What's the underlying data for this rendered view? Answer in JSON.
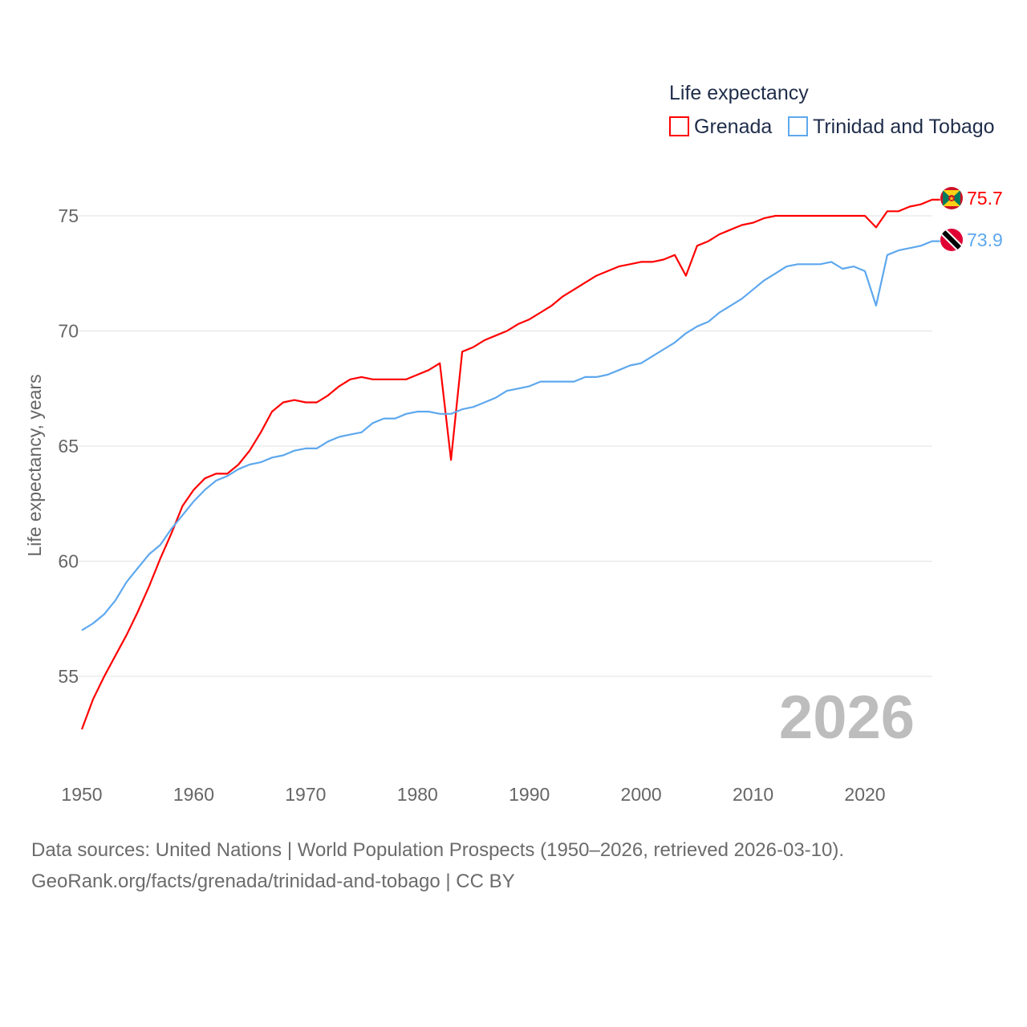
{
  "chart_data": {
    "type": "line",
    "legend_title": "Life expectancy",
    "legend_position": "top-right",
    "ylabel": "Life expectancy, years",
    "xlabel": "",
    "xlim": [
      1950,
      2026
    ],
    "ylim": [
      51.5,
      77
    ],
    "x_ticks": [
      1950,
      1960,
      1970,
      1980,
      1990,
      2000,
      2010,
      2020
    ],
    "y_ticks": [
      55,
      60,
      65,
      70,
      75
    ],
    "year_watermark": "2026",
    "grid": true,
    "series": [
      {
        "name": "Grenada",
        "color": "#ff0000",
        "end_label": "75.7",
        "flag": "grenada-flag",
        "values": [
          52.7,
          54.0,
          55.0,
          55.9,
          56.8,
          57.8,
          58.9,
          60.1,
          61.2,
          62.4,
          63.1,
          63.6,
          63.8,
          63.8,
          64.2,
          64.8,
          65.6,
          66.5,
          66.9,
          67.0,
          66.9,
          66.9,
          67.2,
          67.6,
          67.9,
          68.0,
          67.9,
          67.9,
          67.9,
          67.9,
          68.1,
          68.3,
          68.6,
          64.4,
          69.1,
          69.3,
          69.6,
          69.8,
          70.0,
          70.3,
          70.5,
          70.8,
          71.1,
          71.5,
          71.8,
          72.1,
          72.4,
          72.6,
          72.8,
          72.9,
          73.0,
          73.0,
          73.1,
          73.3,
          72.4,
          73.7,
          73.9,
          74.2,
          74.4,
          74.6,
          74.7,
          74.9,
          75.0,
          75.0,
          75.0,
          75.0,
          75.0,
          75.0,
          75.0,
          75.0,
          75.0,
          74.5,
          75.2,
          75.2,
          75.4,
          75.5,
          75.7
        ]
      },
      {
        "name": "Trinidad and Tobago",
        "color": "#5ea8ee",
        "end_label": "73.9",
        "flag": "trinidad-and-tobago-flag",
        "values": [
          57.0,
          57.3,
          57.7,
          58.3,
          59.1,
          59.7,
          60.3,
          60.7,
          61.4,
          62.0,
          62.6,
          63.1,
          63.5,
          63.7,
          64.0,
          64.2,
          64.3,
          64.5,
          64.6,
          64.8,
          64.9,
          64.9,
          65.2,
          65.4,
          65.5,
          65.6,
          66.0,
          66.2,
          66.2,
          66.4,
          66.5,
          66.5,
          66.4,
          66.4,
          66.6,
          66.7,
          66.9,
          67.1,
          67.4,
          67.5,
          67.6,
          67.8,
          67.8,
          67.8,
          67.8,
          68.0,
          68.0,
          68.1,
          68.3,
          68.5,
          68.6,
          68.9,
          69.2,
          69.5,
          69.9,
          70.2,
          70.4,
          70.8,
          71.1,
          71.4,
          71.8,
          72.2,
          72.5,
          72.8,
          72.9,
          72.9,
          72.9,
          73.0,
          72.7,
          72.8,
          72.6,
          71.1,
          73.3,
          73.5,
          73.6,
          73.7,
          73.9
        ]
      }
    ]
  },
  "footer": {
    "line1": "Data sources: United Nations | World Population Prospects (1950–2026, retrieved 2026-03-10).",
    "line2": "GeoRank.org/facts/grenada/trinidad-and-tobago | CC BY"
  }
}
